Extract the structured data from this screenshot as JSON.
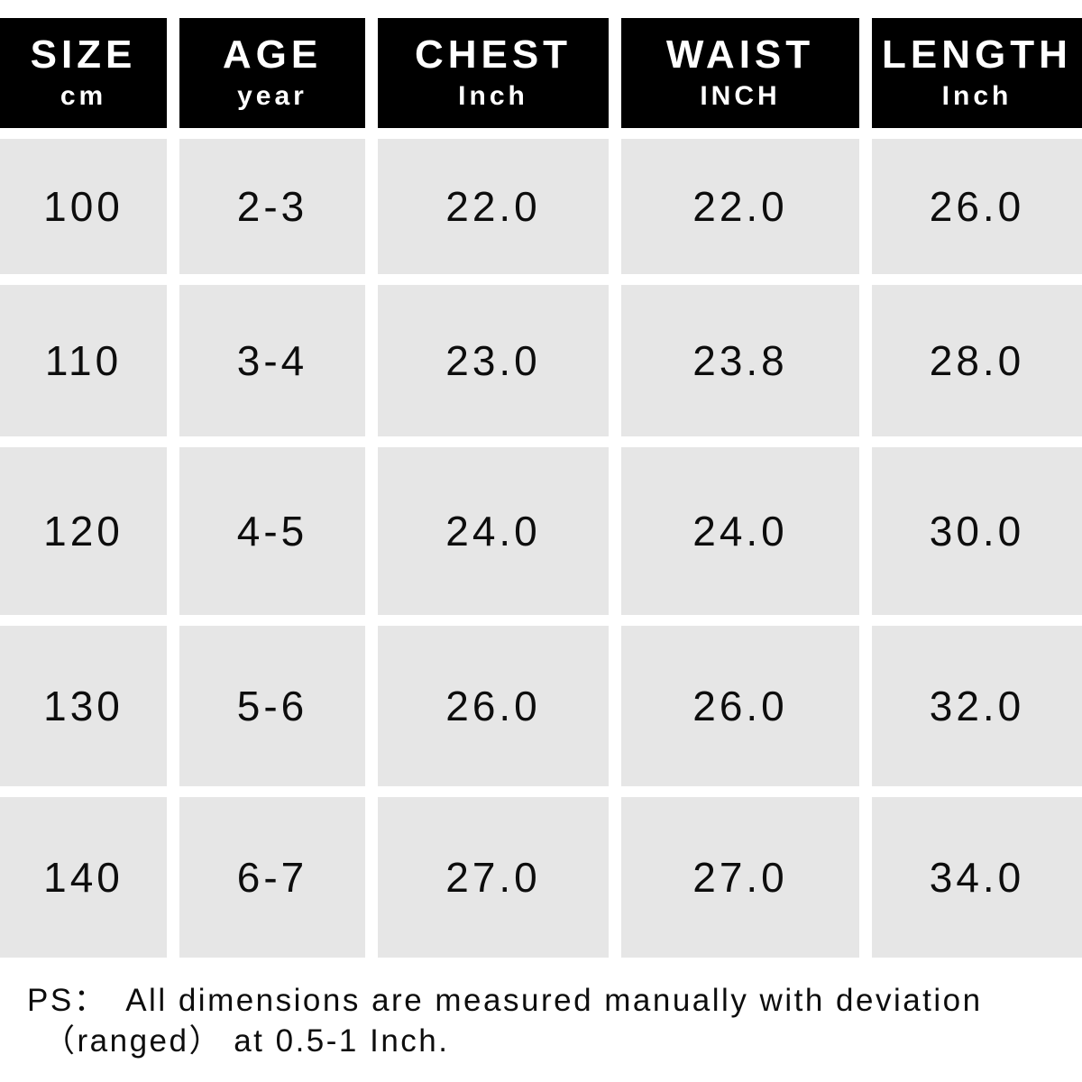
{
  "chart_data": {
    "type": "table",
    "columns": [
      "SIZE cm",
      "AGE year",
      "CHEST Inch",
      "WAIST INCH",
      "LENGTH Inch"
    ],
    "rows": [
      [
        "100",
        "2-3",
        "22.0",
        "22.0",
        "26.0"
      ],
      [
        "110",
        "3-4",
        "23.0",
        "23.8",
        "28.0"
      ],
      [
        "120",
        "4-5",
        "24.0",
        "24.0",
        "30.0"
      ],
      [
        "130",
        "5-6",
        "26.0",
        "26.0",
        "32.0"
      ],
      [
        "140",
        "6-7",
        "27.0",
        "27.0",
        "34.0"
      ]
    ],
    "note": "PS： All dimensions are measured manually with deviation （ranged） at 0.5-1 Inch."
  },
  "table": {
    "columns": [
      {
        "title": "SIZE",
        "unit": "cm"
      },
      {
        "title": "AGE",
        "unit": "year"
      },
      {
        "title": "CHEST",
        "unit": "Inch"
      },
      {
        "title": "WAIST",
        "unit": "INCH"
      },
      {
        "title": "LENGTH",
        "unit": "Inch"
      }
    ],
    "rows": [
      {
        "size": "100",
        "age": "2-3",
        "chest": "22.0",
        "waist": "22.0",
        "length": "26.0"
      },
      {
        "size": "110",
        "age": "3-4",
        "chest": "23.0",
        "waist": "23.8",
        "length": "28.0"
      },
      {
        "size": "120",
        "age": "4-5",
        "chest": "24.0",
        "waist": "24.0",
        "length": "30.0"
      },
      {
        "size": "130",
        "age": "5-6",
        "chest": "26.0",
        "waist": "26.0",
        "length": "32.0"
      },
      {
        "size": "140",
        "age": "6-7",
        "chest": "27.0",
        "waist": "27.0",
        "length": "34.0"
      }
    ]
  },
  "footer": {
    "prefix": "PS：",
    "line1": "All dimensions are measured manually with deviation",
    "line2": "（ranged） at 0.5-1 Inch."
  },
  "colors": {
    "header_bg": "#000000",
    "header_text": "#ffffff",
    "cell_bg": "#e6e6e6",
    "cell_text": "#0d0d0d",
    "background": "#ffffff"
  }
}
